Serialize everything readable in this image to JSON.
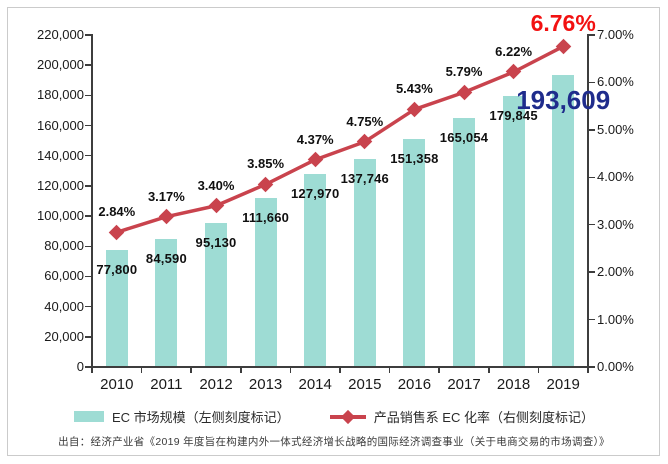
{
  "chart_data": {
    "type": "bar+line combo",
    "categories": [
      "2010",
      "2011",
      "2012",
      "2013",
      "2014",
      "2015",
      "2016",
      "2017",
      "2018",
      "2019"
    ],
    "series": [
      {
        "name": "EC 市场规模（左侧刻度标记）",
        "type": "bar",
        "axis": "left",
        "color": "#9EDCD4",
        "values": [
          77800,
          84590,
          95130,
          111660,
          127970,
          137746,
          151358,
          165054,
          179845,
          193609
        ],
        "labels": [
          "77,800",
          "84,590",
          "95,130",
          "111,660",
          "127,970",
          "137,746",
          "151,358",
          "165,054",
          "179,845",
          "193,609"
        ]
      },
      {
        "name": "产品销售系 EC 化率（右侧刻度标记）",
        "type": "line",
        "axis": "right",
        "color": "#C9434D",
        "values": [
          2.84,
          3.17,
          3.4,
          3.85,
          4.37,
          4.75,
          5.43,
          5.79,
          6.22,
          6.76
        ],
        "labels": [
          "2.84%",
          "3.17%",
          "3.40%",
          "3.85%",
          "4.37%",
          "4.75%",
          "5.43%",
          "5.79%",
          "6.22%",
          "6.76%"
        ]
      }
    ],
    "left_axis": {
      "ticks_top_to_bottom": [
        "220,000",
        "200,000",
        "180,000",
        "160,000",
        "140,000",
        "120,000",
        "100,000",
        "80,000",
        "60,000",
        "40,000",
        "20,000",
        "0"
      ],
      "min": 0,
      "max": 220000
    },
    "right_axis": {
      "ticks_top_to_bottom": [
        "7.00%",
        "6.00%",
        "5.00%",
        "4.00%",
        "3.00%",
        "2.00%",
        "1.00%",
        "0.00%"
      ],
      "min": 0,
      "max": 7
    },
    "highlight": {
      "final_rate_label": "6.76%",
      "final_rate_color": "#F21111",
      "final_value_label": "193,609",
      "final_value_color": "#1F2C8C"
    },
    "legend": [
      {
        "label": "EC 市场规模（左侧刻度标记）",
        "marker": "bar-swatch"
      },
      {
        "label": "产品销售系 EC 化率（右侧刻度标记）",
        "marker": "line-diamond"
      }
    ],
    "grid": "off",
    "legend_position": "bottom-center",
    "source": "出自：经济产业省《2019 年度旨在构建内外一体式经济增长战略的国际经济调查事业（关于电商交易的市场调查）》"
  }
}
